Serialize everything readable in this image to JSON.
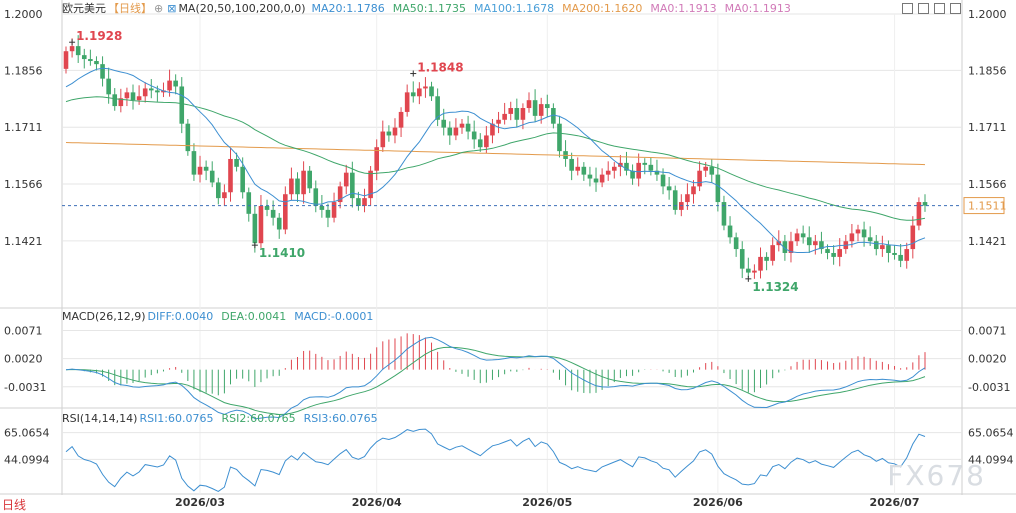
{
  "header": {
    "symbol": "欧元美元",
    "period": "【日线】",
    "ma_label": "MA(20,50,100,200,0,0)",
    "ma20": "MA20:1.1786",
    "ma50": "MA50:1.1735",
    "ma100": "MA100:1.1678",
    "ma200": "MA200:1.1620",
    "ma0a": "MA0:1.1913",
    "ma0b": "MA0:1.1913"
  },
  "macd_header": {
    "label": "MACD(26,12,9)",
    "diff": "DIFF:0.0040",
    "dea": "DEA:0.0041",
    "macd": "MACD:-0.0001"
  },
  "rsi_header": {
    "label": "RSI(14,14,14)",
    "rsi1": "RSI1:60.0765",
    "rsi2": "RSI2:60.0765",
    "rsi3": "RSI3:60.0765"
  },
  "period_label": "日线",
  "watermark": "FX678",
  "colors": {
    "up": "#e0464f",
    "down": "#3fa66a",
    "ma20": "#3d8fd1",
    "ma50": "#3fa66a",
    "ma200": "#e39a4b",
    "diff": "#3d8fd1",
    "dea": "#3fa66a",
    "rsi": "#3d8fd1",
    "grid": "#e6e6e6",
    "last": "#3d6fb8",
    "last_label": "#e39a4b"
  },
  "chart_data": [
    {
      "type": "candlestick",
      "y_ticks": [
        "1.2000",
        "1.1856",
        "1.1711",
        "1.1566",
        "1.1421"
      ],
      "x_ticks": [
        "2026/03",
        "2026/04",
        "2026/05",
        "2026/06",
        "2026/07"
      ],
      "ylim": [
        1.127,
        1.2
      ],
      "last_price": "1.1511",
      "annotations": [
        {
          "label": "1.1928",
          "value": 1.1928,
          "kind": "high"
        },
        {
          "label": "1.1410",
          "value": 1.141,
          "kind": "low"
        },
        {
          "label": "1.1848",
          "value": 1.1848,
          "kind": "high"
        },
        {
          "label": "1.1324",
          "value": 1.1324,
          "kind": "low"
        }
      ],
      "closes": [
        1.1905,
        1.1918,
        1.1895,
        1.1885,
        1.188,
        1.1872,
        1.1835,
        1.1795,
        1.1765,
        1.1785,
        1.18,
        1.178,
        1.179,
        1.181,
        1.1805,
        1.18,
        1.1805,
        1.183,
        1.1815,
        1.172,
        1.165,
        1.159,
        1.161,
        1.16,
        1.157,
        1.153,
        1.1545,
        1.163,
        1.161,
        1.1545,
        1.149,
        1.1415,
        1.151,
        1.15,
        1.148,
        1.145,
        1.154,
        1.158,
        1.154,
        1.16,
        1.1555,
        1.151,
        1.15,
        1.148,
        1.152,
        1.156,
        1.1595,
        1.153,
        1.151,
        1.153,
        1.16,
        1.166,
        1.17,
        1.169,
        1.171,
        1.175,
        1.18,
        1.179,
        1.181,
        1.1815,
        1.179,
        1.173,
        1.171,
        1.169,
        1.171,
        1.172,
        1.17,
        1.168,
        1.166,
        1.169,
        1.172,
        1.173,
        1.1745,
        1.176,
        1.173,
        1.176,
        1.178,
        1.174,
        1.177,
        1.176,
        1.172,
        1.165,
        1.163,
        1.16,
        1.161,
        1.159,
        1.158,
        1.157,
        1.159,
        1.16,
        1.161,
        1.162,
        1.16,
        1.158,
        1.162,
        1.1615,
        1.16,
        1.159,
        1.156,
        1.155,
        1.15,
        1.152,
        1.154,
        1.156,
        1.16,
        1.161,
        1.159,
        1.152,
        1.146,
        1.143,
        1.14,
        1.135,
        1.134,
        1.1345,
        1.138,
        1.137,
        1.141,
        1.142,
        1.139,
        1.142,
        1.144,
        1.143,
        1.141,
        1.142,
        1.14,
        1.139,
        1.138,
        1.14,
        1.142,
        1.144,
        1.145,
        1.143,
        1.142,
        1.14,
        1.141,
        1.139,
        1.1385,
        1.137,
        1.14,
        1.146,
        1.152,
        1.1511
      ]
    },
    {
      "type": "macd",
      "y_ticks": [
        "0.0071",
        "0.0020",
        "-0.0031"
      ],
      "ylim": [
        -0.0055,
        0.009
      ]
    },
    {
      "type": "rsi",
      "y_ticks": [
        "65.0654",
        "44.0994"
      ],
      "ylim": [
        20,
        75
      ]
    }
  ]
}
